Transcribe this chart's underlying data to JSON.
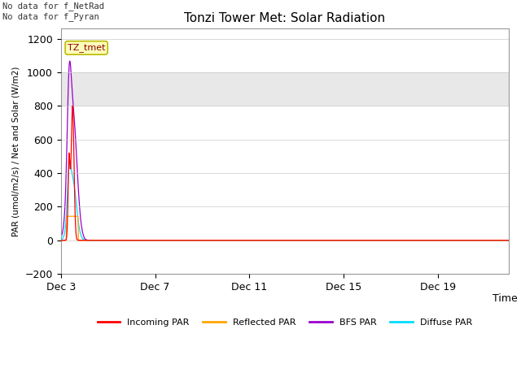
{
  "title": "Tonzi Tower Met: Solar Radiation",
  "xlabel": "Time",
  "ylabel": "PAR (umol/m2/s) / Net and Solar (W/m2)",
  "ylim": [
    -200,
    1260
  ],
  "yticks": [
    -200,
    0,
    200,
    400,
    600,
    800,
    1000,
    1200
  ],
  "xlim_start": 0,
  "xlim_end": 19,
  "xtick_labels": [
    "Dec 3",
    "Dec 7",
    "Dec 11",
    "Dec 15",
    "Dec 19"
  ],
  "xtick_positions": [
    0,
    4,
    8,
    12,
    16
  ],
  "colors": {
    "incoming_par": "#ff0000",
    "reflected_par": "#ffa500",
    "bf5_par": "#9900cc",
    "diffuse_par": "#00ddff"
  },
  "legend_labels": [
    "Incoming PAR",
    "Reflected PAR",
    "BFS PAR",
    "Diffuse PAR"
  ],
  "annotation_top_left": "No data for f_NetRad\nNo data for f_Pyran",
  "tag_label": "TZ_tmet",
  "gray_band_color": "#e8e8e8",
  "gray_ymin": 800,
  "gray_ymax": 1000,
  "figure_bg": "#ffffff"
}
